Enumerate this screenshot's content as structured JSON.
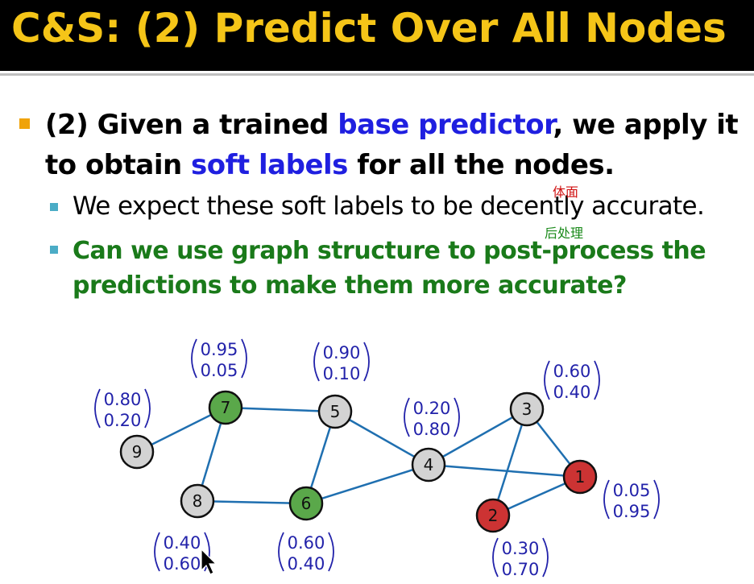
{
  "title": "C&S: (2) Predict Over All Nodes",
  "main_bullet": {
    "p1": "(2) Given a trained ",
    "hl1": "base predictor",
    "p2": ", we apply it to obtain ",
    "hl2": "soft labels",
    "p3": " for all the nodes."
  },
  "sub_bullets": [
    "We expect these soft labels to be decently accurate.",
    "Can we use graph structure to post-process the predictions to make them more accurate?"
  ],
  "annotations": [
    "体面",
    "后处理"
  ],
  "colors": {
    "title": "#f5c518",
    "highlight": "#1f1fe0",
    "green_text": "#1a7a1a",
    "edge": "#1f6fb0",
    "node_gray": "#d3d3d3",
    "node_green": "#5aa84a",
    "node_red": "#cc3333",
    "prob_text": "#2222aa"
  },
  "graph": {
    "nodes": [
      {
        "id": "1",
        "class": "red",
        "probs": [
          "0.05",
          "0.95"
        ]
      },
      {
        "id": "2",
        "class": "red",
        "probs": [
          "0.30",
          "0.70"
        ]
      },
      {
        "id": "3",
        "class": "gray",
        "probs": [
          "0.60",
          "0.40"
        ]
      },
      {
        "id": "4",
        "class": "gray",
        "probs": [
          "0.20",
          "0.80"
        ]
      },
      {
        "id": "5",
        "class": "gray",
        "probs": [
          "0.90",
          "0.10"
        ]
      },
      {
        "id": "6",
        "class": "green",
        "probs": [
          "0.60",
          "0.40"
        ]
      },
      {
        "id": "7",
        "class": "green",
        "probs": [
          "0.95",
          "0.05"
        ]
      },
      {
        "id": "8",
        "class": "gray",
        "probs": [
          "0.40",
          "0.60"
        ]
      },
      {
        "id": "9",
        "class": "gray",
        "probs": [
          "0.80",
          "0.20"
        ]
      }
    ],
    "edges": [
      [
        "9",
        "7"
      ],
      [
        "7",
        "5"
      ],
      [
        "7",
        "8"
      ],
      [
        "8",
        "6"
      ],
      [
        "6",
        "5"
      ],
      [
        "6",
        "4"
      ],
      [
        "5",
        "4"
      ],
      [
        "4",
        "3"
      ],
      [
        "4",
        "1"
      ],
      [
        "3",
        "1"
      ],
      [
        "3",
        "2"
      ],
      [
        "2",
        "1"
      ]
    ]
  }
}
